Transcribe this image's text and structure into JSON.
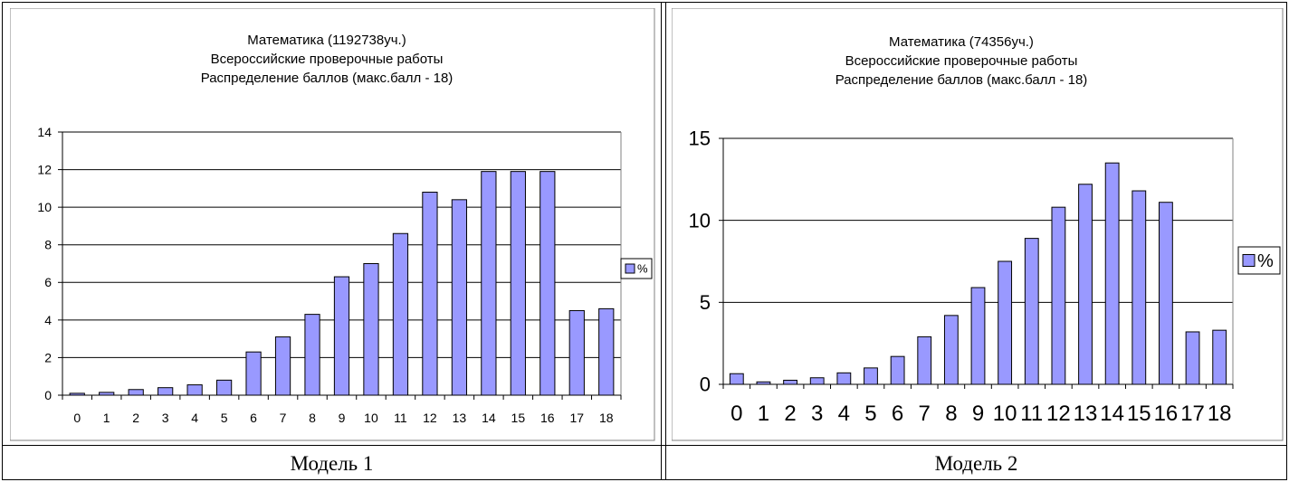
{
  "captions": [
    "Модель 1",
    "Модель 2"
  ],
  "chart_data": [
    {
      "type": "bar",
      "title_lines": [
        "Математика (1192738уч.)",
        "Всероссийские проверочные работы",
        "Распределение баллов (макс.балл - 18)"
      ],
      "categories": [
        "0",
        "1",
        "2",
        "3",
        "4",
        "5",
        "6",
        "7",
        "8",
        "9",
        "10",
        "11",
        "12",
        "13",
        "14",
        "15",
        "16",
        "17",
        "18"
      ],
      "series": [
        {
          "name": "%",
          "values": [
            0.1,
            0.15,
            0.3,
            0.4,
            0.55,
            0.8,
            2.3,
            3.1,
            4.3,
            6.3,
            7.0,
            8.6,
            10.8,
            10.4,
            11.9,
            11.9,
            11.9,
            4.5,
            4.6
          ]
        }
      ],
      "ylim": [
        0,
        14
      ],
      "yticks": [
        0,
        2,
        4,
        6,
        8,
        10,
        12,
        14
      ],
      "grid": true,
      "legend": "right",
      "bar_color": "#9999ff"
    },
    {
      "type": "bar",
      "title_lines": [
        "Математика (74356уч.)",
        "Всероссийские проверочные работы",
        "Распределение баллов (макс.балл - 18)"
      ],
      "categories": [
        "0",
        "1",
        "2",
        "3",
        "4",
        "5",
        "6",
        "7",
        "8",
        "9",
        "10",
        "11",
        "12",
        "13",
        "14",
        "15",
        "16",
        "17",
        "18"
      ],
      "series": [
        {
          "name": "%",
          "values": [
            0.65,
            0.15,
            0.25,
            0.4,
            0.7,
            1.0,
            1.7,
            2.9,
            4.2,
            5.9,
            7.5,
            8.9,
            10.8,
            12.2,
            13.5,
            11.8,
            11.1,
            3.2,
            3.3
          ]
        }
      ],
      "ylim": [
        0,
        15
      ],
      "yticks": [
        0,
        5,
        10,
        15
      ],
      "grid": true,
      "legend": "right",
      "bar_color": "#9999ff"
    }
  ]
}
